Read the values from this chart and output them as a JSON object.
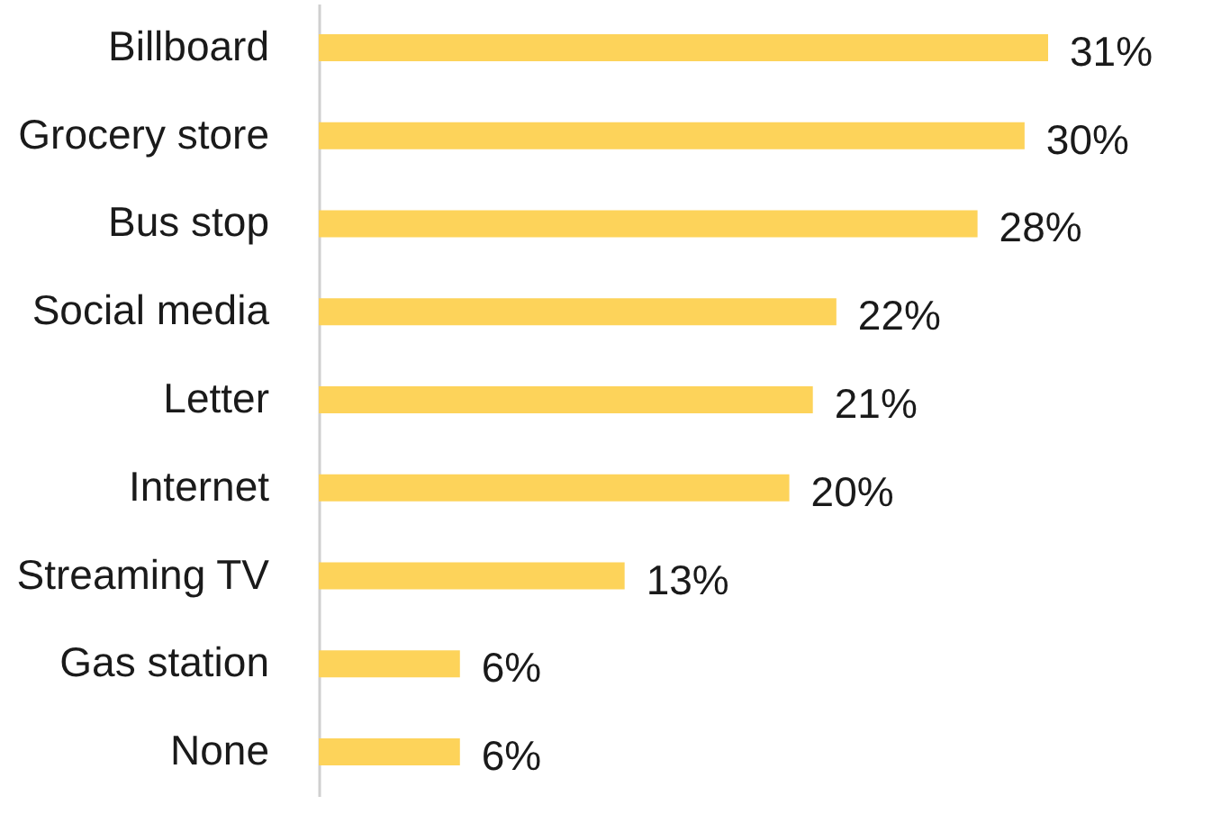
{
  "chart_data": {
    "type": "bar",
    "orientation": "horizontal",
    "categories": [
      "Billboard",
      "Grocery store",
      "Bus stop",
      "Social media",
      "Letter",
      "Internet",
      "Streaming TV",
      "Gas station",
      "None"
    ],
    "series": [
      {
        "color": "#fdd35a",
        "values": [
          31,
          30,
          28,
          22,
          21,
          20,
          13,
          6,
          6
        ],
        "value_labels": [
          "31%",
          "30%",
          "28%",
          "22%",
          "21%",
          "20%",
          "13%",
          "6%",
          "6%"
        ]
      }
    ],
    "tick_labels": "y"
  }
}
